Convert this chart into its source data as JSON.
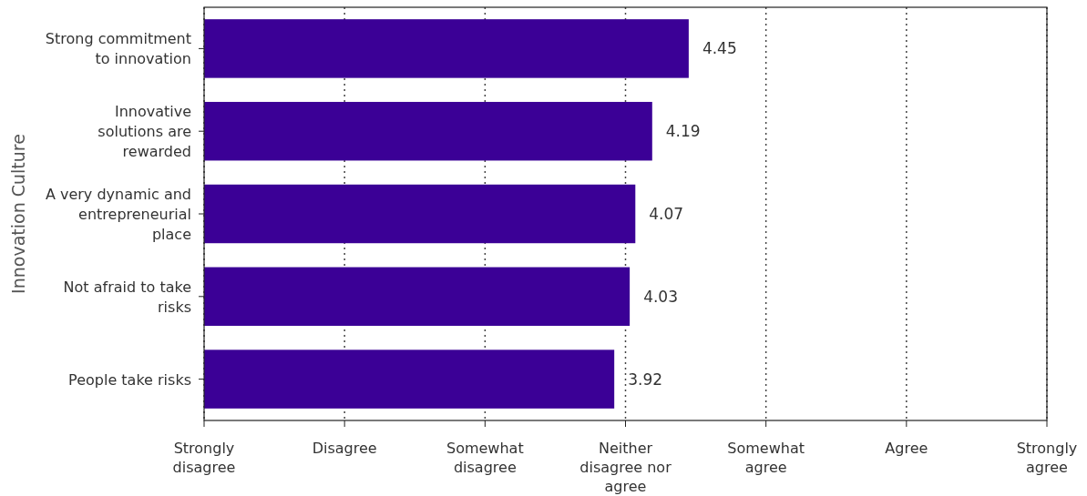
{
  "chart_data": {
    "type": "bar",
    "orientation": "horizontal",
    "ylabel": "Innovation Culture",
    "categories": [
      "Strong commitment to innovation",
      "Innovative solutions are rewarded",
      "A very dynamic and entrepreneurial place",
      "Not afraid to take risks",
      "People take risks"
    ],
    "values": [
      4.45,
      4.19,
      4.07,
      4.03,
      3.92
    ],
    "color": "#3b0096",
    "data_labels": true,
    "xlim": [
      1,
      7
    ],
    "annotations": [
      "Strongly disagree",
      "Disagree",
      "Somewhat disagree",
      "Neither disagree nor agree",
      "Somewhat agree",
      "Agree",
      "Strongly agree"
    ],
    "grid": "x"
  }
}
